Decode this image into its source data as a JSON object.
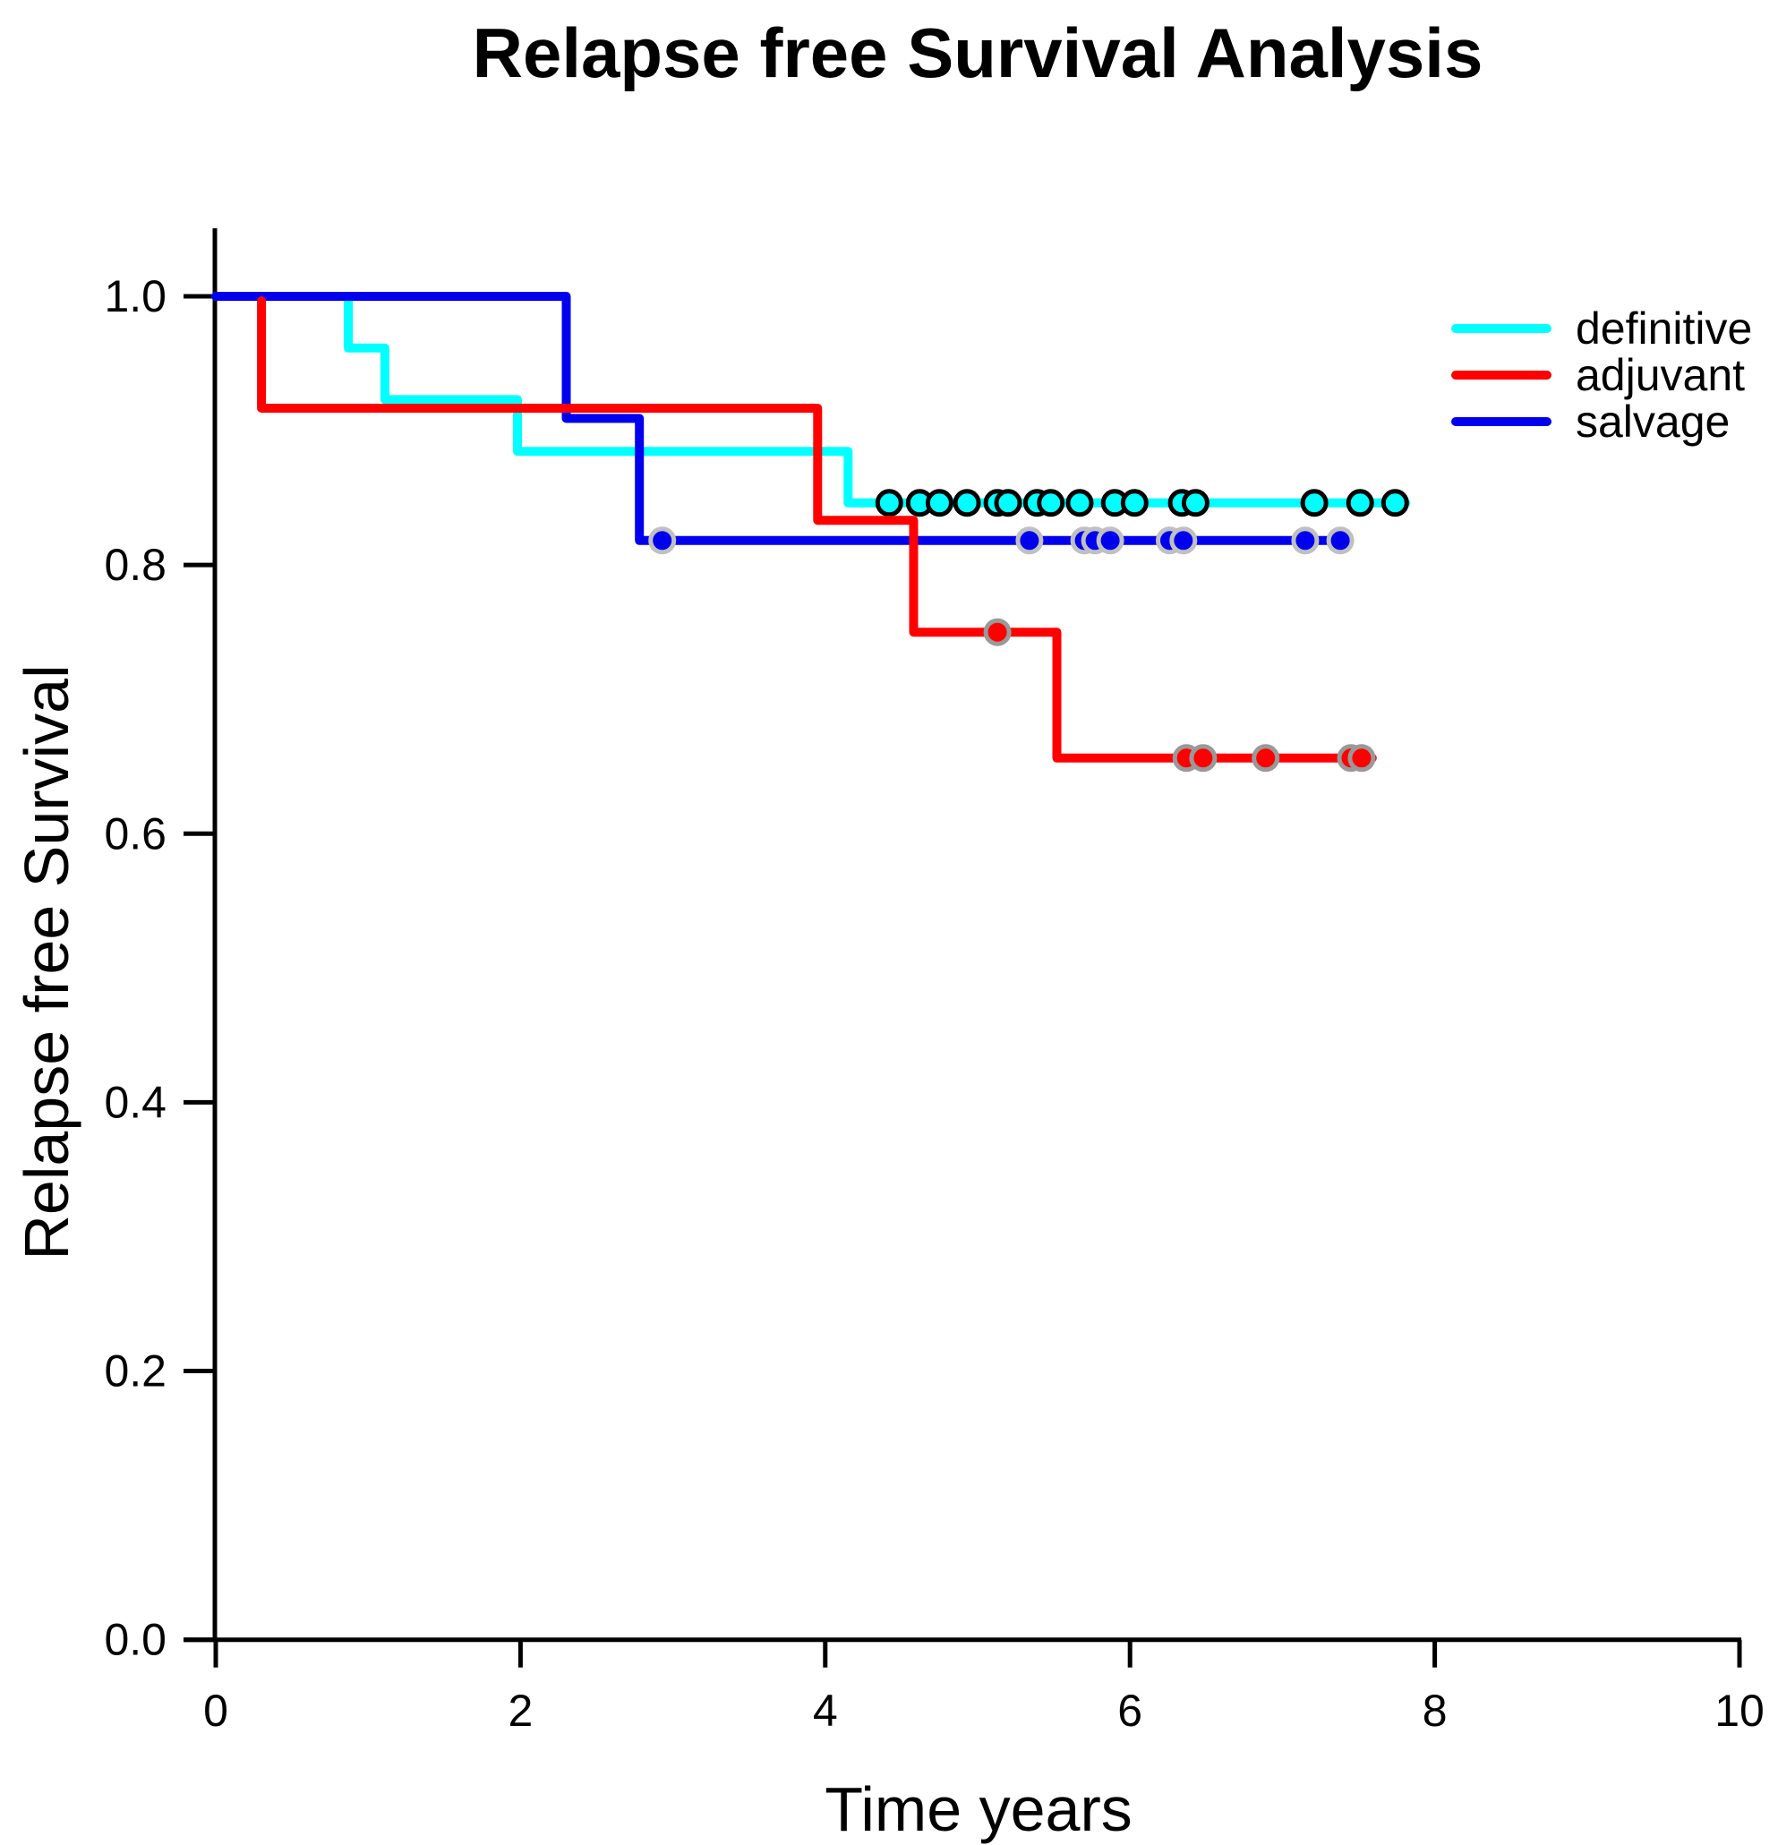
{
  "chart_data": {
    "type": "line",
    "subtype": "kaplan-meier-step",
    "title": "Relapse free Survival Analysis",
    "xlabel": "Time years",
    "ylabel": "Relapse free Survival",
    "xlim": [
      0,
      10
    ],
    "ylim": [
      0,
      1
    ],
    "grid": false,
    "xticks": [
      {
        "value": 0,
        "label": "0"
      },
      {
        "value": 2,
        "label": "2"
      },
      {
        "value": 4,
        "label": "4"
      },
      {
        "value": 6,
        "label": "6"
      },
      {
        "value": 8,
        "label": "8"
      },
      {
        "value": 10,
        "label": "10"
      }
    ],
    "yticks": [
      {
        "value": 0.0,
        "label": "0.0"
      },
      {
        "value": 0.2,
        "label": "0.2"
      },
      {
        "value": 0.4,
        "label": "0.4"
      },
      {
        "value": 0.6,
        "label": "0.6"
      },
      {
        "value": 0.8,
        "label": "0.8"
      },
      {
        "value": 1.0,
        "label": "1.0"
      }
    ],
    "legend": {
      "position": "top-right",
      "items": [
        {
          "label": "definitive",
          "color": "#00FFFF"
        },
        {
          "label": "adjuvant",
          "color": "#FF0000"
        },
        {
          "label": "salvage",
          "color": "#0000EE"
        }
      ]
    },
    "series": [
      {
        "name": "definitive",
        "color": "#00FFFF",
        "marker_outline": "#000000",
        "start": {
          "t": 0,
          "s": 1.0
        },
        "drops": [
          {
            "t": 0.87,
            "s": 0.9615
          },
          {
            "t": 1.11,
            "s": 0.9231
          },
          {
            "t": 1.98,
            "s": 0.8846
          },
          {
            "t": 4.15,
            "s": 0.8462
          }
        ],
        "end": 7.81,
        "censored": [
          4.42,
          4.62,
          4.75,
          4.93,
          5.13,
          5.2,
          5.39,
          5.48,
          5.67,
          5.9,
          6.03,
          6.34,
          6.43,
          7.21,
          7.51,
          7.74
        ]
      },
      {
        "name": "salvage",
        "color": "#0000EE",
        "marker_outline": "#C0C0C0",
        "start": {
          "t": 0,
          "s": 1.0
        },
        "drops": [
          {
            "t": 2.3,
            "s": 0.9091
          },
          {
            "t": 2.78,
            "s": 0.8182
          }
        ],
        "end": 7.44,
        "censored": [
          2.93,
          5.34,
          5.7,
          5.77,
          5.87,
          6.26,
          6.35,
          7.15,
          7.38
        ]
      },
      {
        "name": "adjuvant",
        "color": "#FF0000",
        "marker_outline": "#999999",
        "start": {
          "t": 0.3,
          "s": 1.0
        },
        "drops": [
          {
            "t": 0.3,
            "s": 0.9167
          },
          {
            "t": 3.95,
            "s": 0.8333
          },
          {
            "t": 4.58,
            "s": 0.75
          },
          {
            "t": 5.52,
            "s": 0.6563
          }
        ],
        "end": 7.59,
        "censored": [
          5.13,
          6.37,
          6.48,
          6.89,
          7.45,
          7.52
        ]
      }
    ]
  }
}
